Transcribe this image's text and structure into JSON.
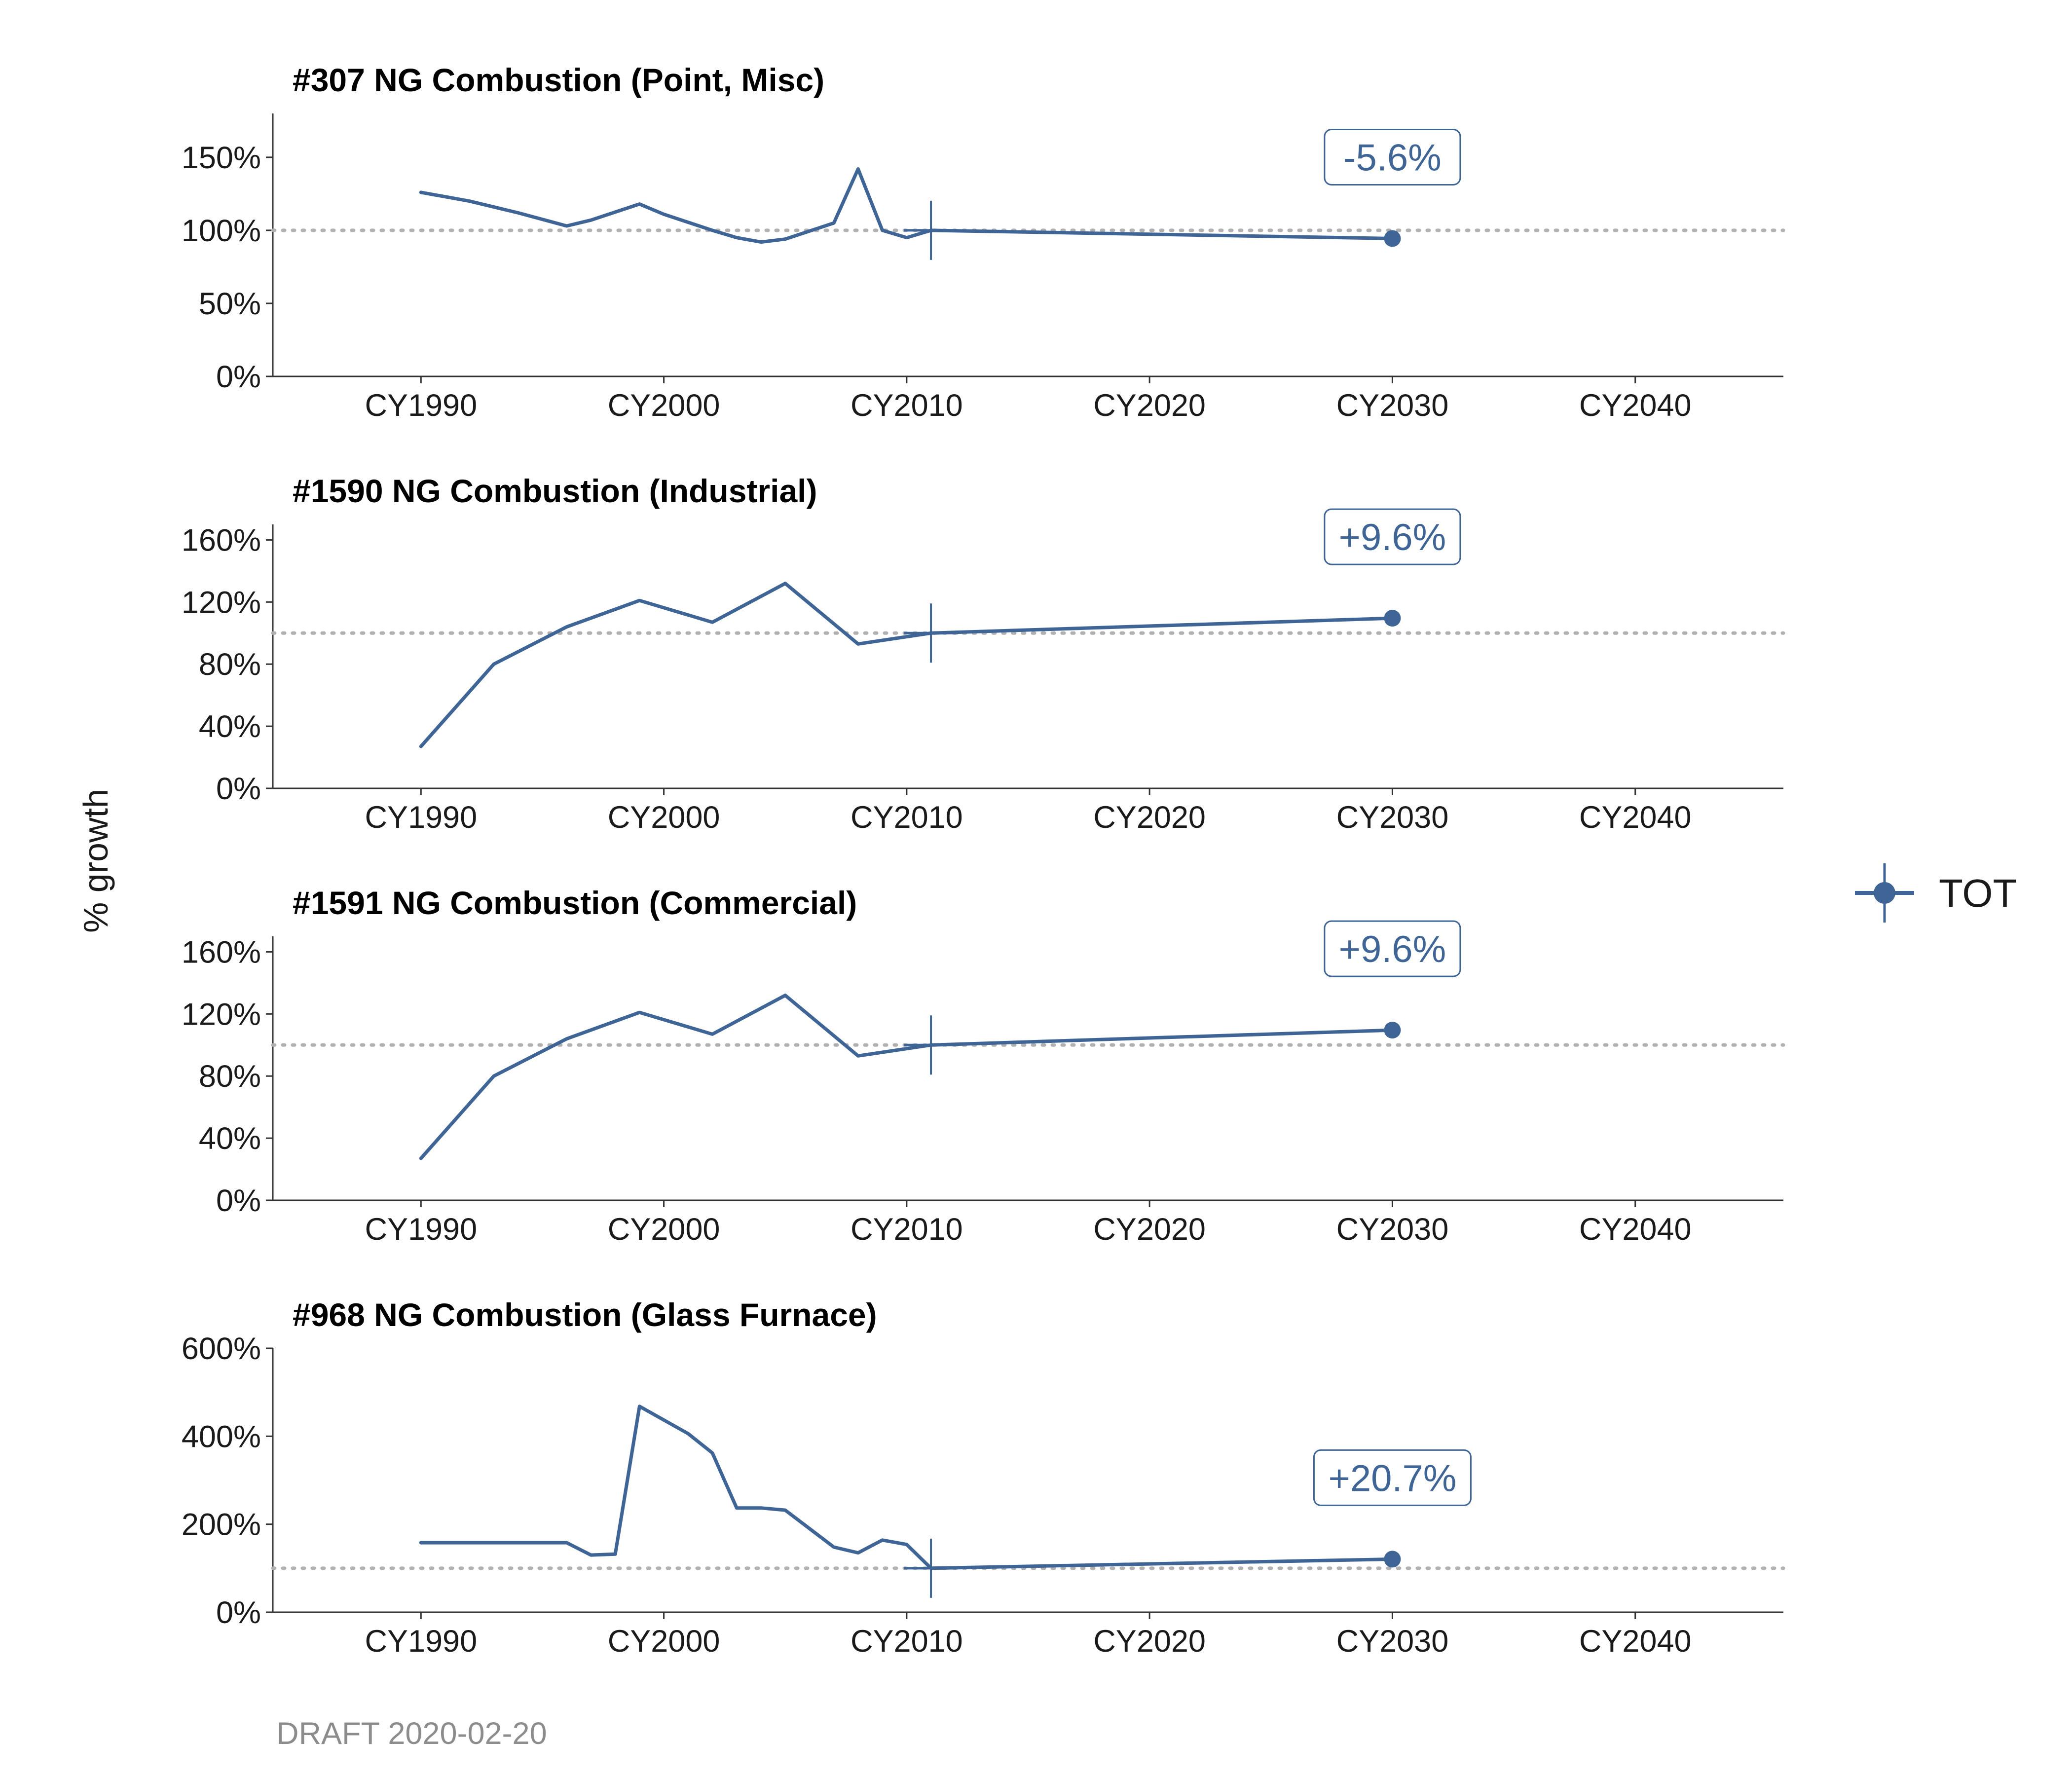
{
  "ylabel": "% growth",
  "legend": {
    "label": "TOT",
    "color": "#3F6496"
  },
  "footer": "DRAFT 2020-02-20",
  "chart_data": [
    {
      "type": "line",
      "title": "#307 NG Combustion (Point, Misc)",
      "x_ticks": [
        "CY1990",
        "CY2000",
        "CY2010",
        "CY2020",
        "CY2030",
        "CY2040"
      ],
      "y_ticks": [
        "0%",
        "50%",
        "100%",
        "150%"
      ],
      "ylim": [
        0,
        1.8
      ],
      "xlim": [
        1983.9,
        2046.1
      ],
      "base_year": 2011,
      "baseline": 1.0,
      "annotation": "-5.6%",
      "series": [
        {
          "x": [
            1990,
            1992,
            1994,
            1996,
            1997,
            1999,
            2000,
            2002,
            2003,
            2004,
            2005,
            2007,
            2008,
            2009,
            2010,
            2011,
            2030
          ],
          "y": [
            1.26,
            1.2,
            1.12,
            1.03,
            1.07,
            1.18,
            1.11,
            1.0,
            0.95,
            0.92,
            0.94,
            1.05,
            1.42,
            1.0,
            0.95,
            1.0,
            0.944
          ]
        }
      ]
    },
    {
      "type": "line",
      "title": "#1590 NG Combustion (Industrial)",
      "x_ticks": [
        "CY1990",
        "CY2000",
        "CY2010",
        "CY2020",
        "CY2030",
        "CY2040"
      ],
      "y_ticks": [
        "0%",
        "40%",
        "80%",
        "120%",
        "160%"
      ],
      "ylim": [
        0,
        1.7
      ],
      "xlim": [
        1983.9,
        2046.1
      ],
      "base_year": 2011,
      "baseline": 1.0,
      "annotation": "+9.6%",
      "series": [
        {
          "x": [
            1990,
            1993,
            1996,
            1999,
            2002,
            2005,
            2008,
            2011,
            2030
          ],
          "y": [
            0.27,
            0.8,
            1.04,
            1.21,
            1.07,
            1.32,
            0.93,
            1.0,
            1.096
          ]
        }
      ]
    },
    {
      "type": "line",
      "title": "#1591 NG Combustion (Commercial)",
      "x_ticks": [
        "CY1990",
        "CY2000",
        "CY2010",
        "CY2020",
        "CY2030",
        "CY2040"
      ],
      "y_ticks": [
        "0%",
        "40%",
        "80%",
        "120%",
        "160%"
      ],
      "ylim": [
        0,
        1.7
      ],
      "xlim": [
        1983.9,
        2046.1
      ],
      "base_year": 2011,
      "baseline": 1.0,
      "annotation": "+9.6%",
      "series": [
        {
          "x": [
            1990,
            1993,
            1996,
            1999,
            2002,
            2005,
            2008,
            2011,
            2030
          ],
          "y": [
            0.27,
            0.8,
            1.04,
            1.21,
            1.07,
            1.32,
            0.93,
            1.0,
            1.096
          ]
        }
      ]
    },
    {
      "type": "line",
      "title": "#968 NG Combustion (Glass Furnace)",
      "x_ticks": [
        "CY1990",
        "CY2000",
        "CY2010",
        "CY2020",
        "CY2030",
        "CY2040"
      ],
      "y_ticks": [
        "0%",
        "200%",
        "400%",
        "600%"
      ],
      "ylim": [
        0,
        6.0
      ],
      "xlim": [
        1983.9,
        2046.1
      ],
      "base_year": 2011,
      "baseline": 1.0,
      "annotation": "+20.7%",
      "series": [
        {
          "x": [
            1990,
            1996,
            1997,
            1998,
            1999,
            2001,
            2002,
            2003,
            2004,
            2005,
            2007,
            2008,
            2009,
            2010,
            2011,
            2030
          ],
          "y": [
            1.58,
            1.58,
            1.3,
            1.32,
            4.68,
            4.06,
            3.62,
            2.37,
            2.37,
            2.32,
            1.48,
            1.35,
            1.64,
            1.54,
            1.0,
            1.207
          ]
        }
      ]
    }
  ]
}
